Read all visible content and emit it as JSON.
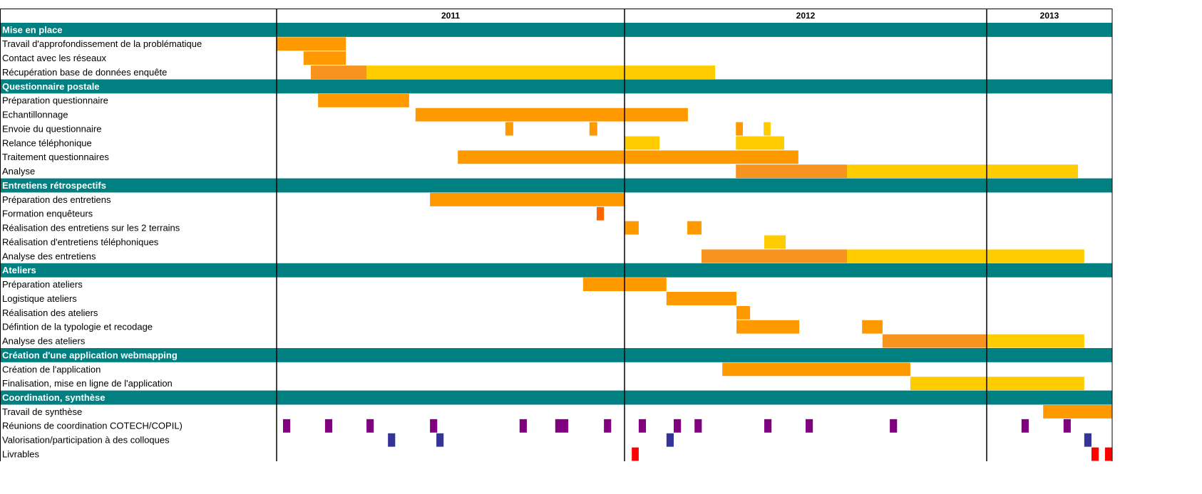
{
  "chart_data": {
    "type": "gantt",
    "years": [
      {
        "label": "2011",
        "months": 12
      },
      {
        "label": "2012",
        "months": 12
      },
      {
        "label": "2013",
        "months": 4
      }
    ],
    "sections": [
      {
        "title": "Mise en place",
        "tasks": [
          {
            "label": "Travail d'approfondissement de la problématique",
            "bars": [
              {
                "start": 0,
                "end": 2.39,
                "color": "#ff9900"
              }
            ]
          },
          {
            "label": "Contact avec les réseaux",
            "bars": [
              {
                "start": 0.93,
                "end": 2.39,
                "color": "#ff9900"
              }
            ]
          },
          {
            "label": "Récupération base de données enquête",
            "bars": [
              {
                "start": 1.18,
                "end": 3.1,
                "color": "#f7931e"
              },
              {
                "start": 3.1,
                "end": 15.0,
                "color": "#ffcc00"
              }
            ]
          }
        ]
      },
      {
        "title": "Questionnaire postale",
        "tasks": [
          {
            "label": "Préparation questionnaire",
            "bars": [
              {
                "start": 1.43,
                "end": 4.57,
                "color": "#ff9900"
              }
            ]
          },
          {
            "label": "Echantillonnage",
            "bars": [
              {
                "start": 4.79,
                "end": 14.1,
                "color": "#ff9900"
              }
            ]
          },
          {
            "label": "Envoie du questionnaire",
            "bars": [
              {
                "start": 7.89,
                "end": 8.16,
                "color": "#ff9900"
              },
              {
                "start": 10.79,
                "end": 11.06,
                "color": "#ff9900"
              },
              {
                "start": 15.69,
                "end": 15.92,
                "color": "#ff9900"
              },
              {
                "start": 16.61,
                "end": 16.84,
                "color": "#ffcc00"
              }
            ]
          },
          {
            "label": "Relance téléphonique",
            "bars": [
              {
                "start": 12,
                "end": 13.16,
                "color": "#ffcc00"
              },
              {
                "start": 15.69,
                "end": 17.29,
                "color": "#ffcc00"
              }
            ]
          },
          {
            "label": "Traitement questionnaires",
            "bars": [
              {
                "start": 6.25,
                "end": 17.76,
                "color": "#ff9900"
              }
            ]
          },
          {
            "label": "Analyse",
            "bars": [
              {
                "start": 15.69,
                "end": 19.37,
                "color": "#f7931e"
              },
              {
                "start": 19.37,
                "end": 26.91,
                "color": "#ffcc00"
              }
            ]
          }
        ]
      },
      {
        "title": "Entretiens rétrospectifs",
        "tasks": [
          {
            "label": "Préparation des entretiens",
            "bars": [
              {
                "start": 5.29,
                "end": 12,
                "color": "#ff9900"
              }
            ]
          },
          {
            "label": "Formation enquêteurs",
            "bars": [
              {
                "start": 11.04,
                "end": 11.29,
                "color": "#ff6600"
              }
            ]
          },
          {
            "label": "Réalisation des entretiens sur les 2 terrains",
            "bars": [
              {
                "start": 12,
                "end": 12.47,
                "color": "#ff9900"
              },
              {
                "start": 14.08,
                "end": 14.55,
                "color": "#ff9900"
              }
            ]
          },
          {
            "label": "Réalisation d'entretiens téléphoniques",
            "bars": [
              {
                "start": 16.63,
                "end": 17.34,
                "color": "#ffcc00"
              }
            ]
          },
          {
            "label": "Analyse des entretiens",
            "bars": [
              {
                "start": 14.55,
                "end": 19.37,
                "color": "#f7931e"
              },
              {
                "start": 19.37,
                "end": 27.11,
                "color": "#ffcc00"
              }
            ]
          }
        ]
      },
      {
        "title": "Ateliers",
        "tasks": [
          {
            "label": "Préparation ateliers",
            "bars": [
              {
                "start": 10.57,
                "end": 13.39,
                "color": "#ff9900"
              }
            ]
          },
          {
            "label": "Logistique ateliers",
            "bars": [
              {
                "start": 13.39,
                "end": 15.71,
                "color": "#ff9900"
              }
            ]
          },
          {
            "label": "Réalisation des ateliers",
            "bars": [
              {
                "start": 15.71,
                "end": 16.16,
                "color": "#ff9900"
              }
            ]
          },
          {
            "label": "Défintion de la typologie et recodage",
            "bars": [
              {
                "start": 15.71,
                "end": 17.79,
                "color": "#ff9900"
              },
              {
                "start": 19.87,
                "end": 20.55,
                "color": "#ff9900"
              }
            ]
          },
          {
            "label": "Analyse des ateliers",
            "bars": [
              {
                "start": 20.55,
                "end": 24,
                "color": "#f7931e"
              },
              {
                "start": 24,
                "end": 27.11,
                "color": "#ffcc00"
              }
            ]
          }
        ]
      },
      {
        "title": "Création d'une application webmapping",
        "tasks": [
          {
            "label": "Création de l'application",
            "bars": [
              {
                "start": 15.24,
                "end": 21.47,
                "color": "#ff9900"
              }
            ]
          },
          {
            "label": "Finalisation, mise en ligne de l'application",
            "bars": [
              {
                "start": 21.47,
                "end": 27.11,
                "color": "#ffcc00"
              }
            ]
          }
        ]
      },
      {
        "title": "Coordination, synthèse",
        "tasks": [
          {
            "label": "Travail de synthèse",
            "bars": [
              {
                "start": 25.8,
                "end": 28,
                "color": "#ff9900"
              }
            ]
          },
          {
            "label": "Réunions de coordination COTECH/COPIL)",
            "bars": [
              {
                "start": 0.22,
                "end": 0.47,
                "color": "#800080"
              },
              {
                "start": 1.67,
                "end": 1.92,
                "color": "#800080"
              },
              {
                "start": 3.1,
                "end": 3.35,
                "color": "#800080"
              },
              {
                "start": 5.29,
                "end": 5.54,
                "color": "#800080"
              },
              {
                "start": 8.38,
                "end": 8.63,
                "color": "#800080"
              },
              {
                "start": 9.61,
                "end": 10.06,
                "color": "#800080"
              },
              {
                "start": 11.29,
                "end": 11.54,
                "color": "#800080"
              },
              {
                "start": 12.47,
                "end": 12.71,
                "color": "#800080"
              },
              {
                "start": 13.63,
                "end": 13.87,
                "color": "#800080"
              },
              {
                "start": 14.32,
                "end": 14.56,
                "color": "#800080"
              },
              {
                "start": 16.63,
                "end": 16.87,
                "color": "#800080"
              },
              {
                "start": 18.0,
                "end": 18.24,
                "color": "#800080"
              },
              {
                "start": 20.79,
                "end": 21.03,
                "color": "#800080"
              },
              {
                "start": 25.11,
                "end": 25.34,
                "color": "#800080"
              },
              {
                "start": 26.45,
                "end": 26.68,
                "color": "#800080"
              }
            ]
          },
          {
            "label": "Valorisation/participation à des colloques",
            "bars": [
              {
                "start": 3.84,
                "end": 4.09,
                "color": "#333399"
              },
              {
                "start": 5.51,
                "end": 5.76,
                "color": "#333399"
              },
              {
                "start": 13.39,
                "end": 13.63,
                "color": "#333399"
              },
              {
                "start": 27.11,
                "end": 27.34,
                "color": "#333399"
              }
            ]
          },
          {
            "label": "Livrables",
            "bars": [
              {
                "start": 12.24,
                "end": 12.47,
                "color": "#ff0000"
              },
              {
                "start": 27.34,
                "end": 27.57,
                "color": "#ff0000"
              },
              {
                "start": 27.77,
                "end": 28,
                "color": "#ff0000"
              }
            ]
          }
        ]
      }
    ]
  }
}
